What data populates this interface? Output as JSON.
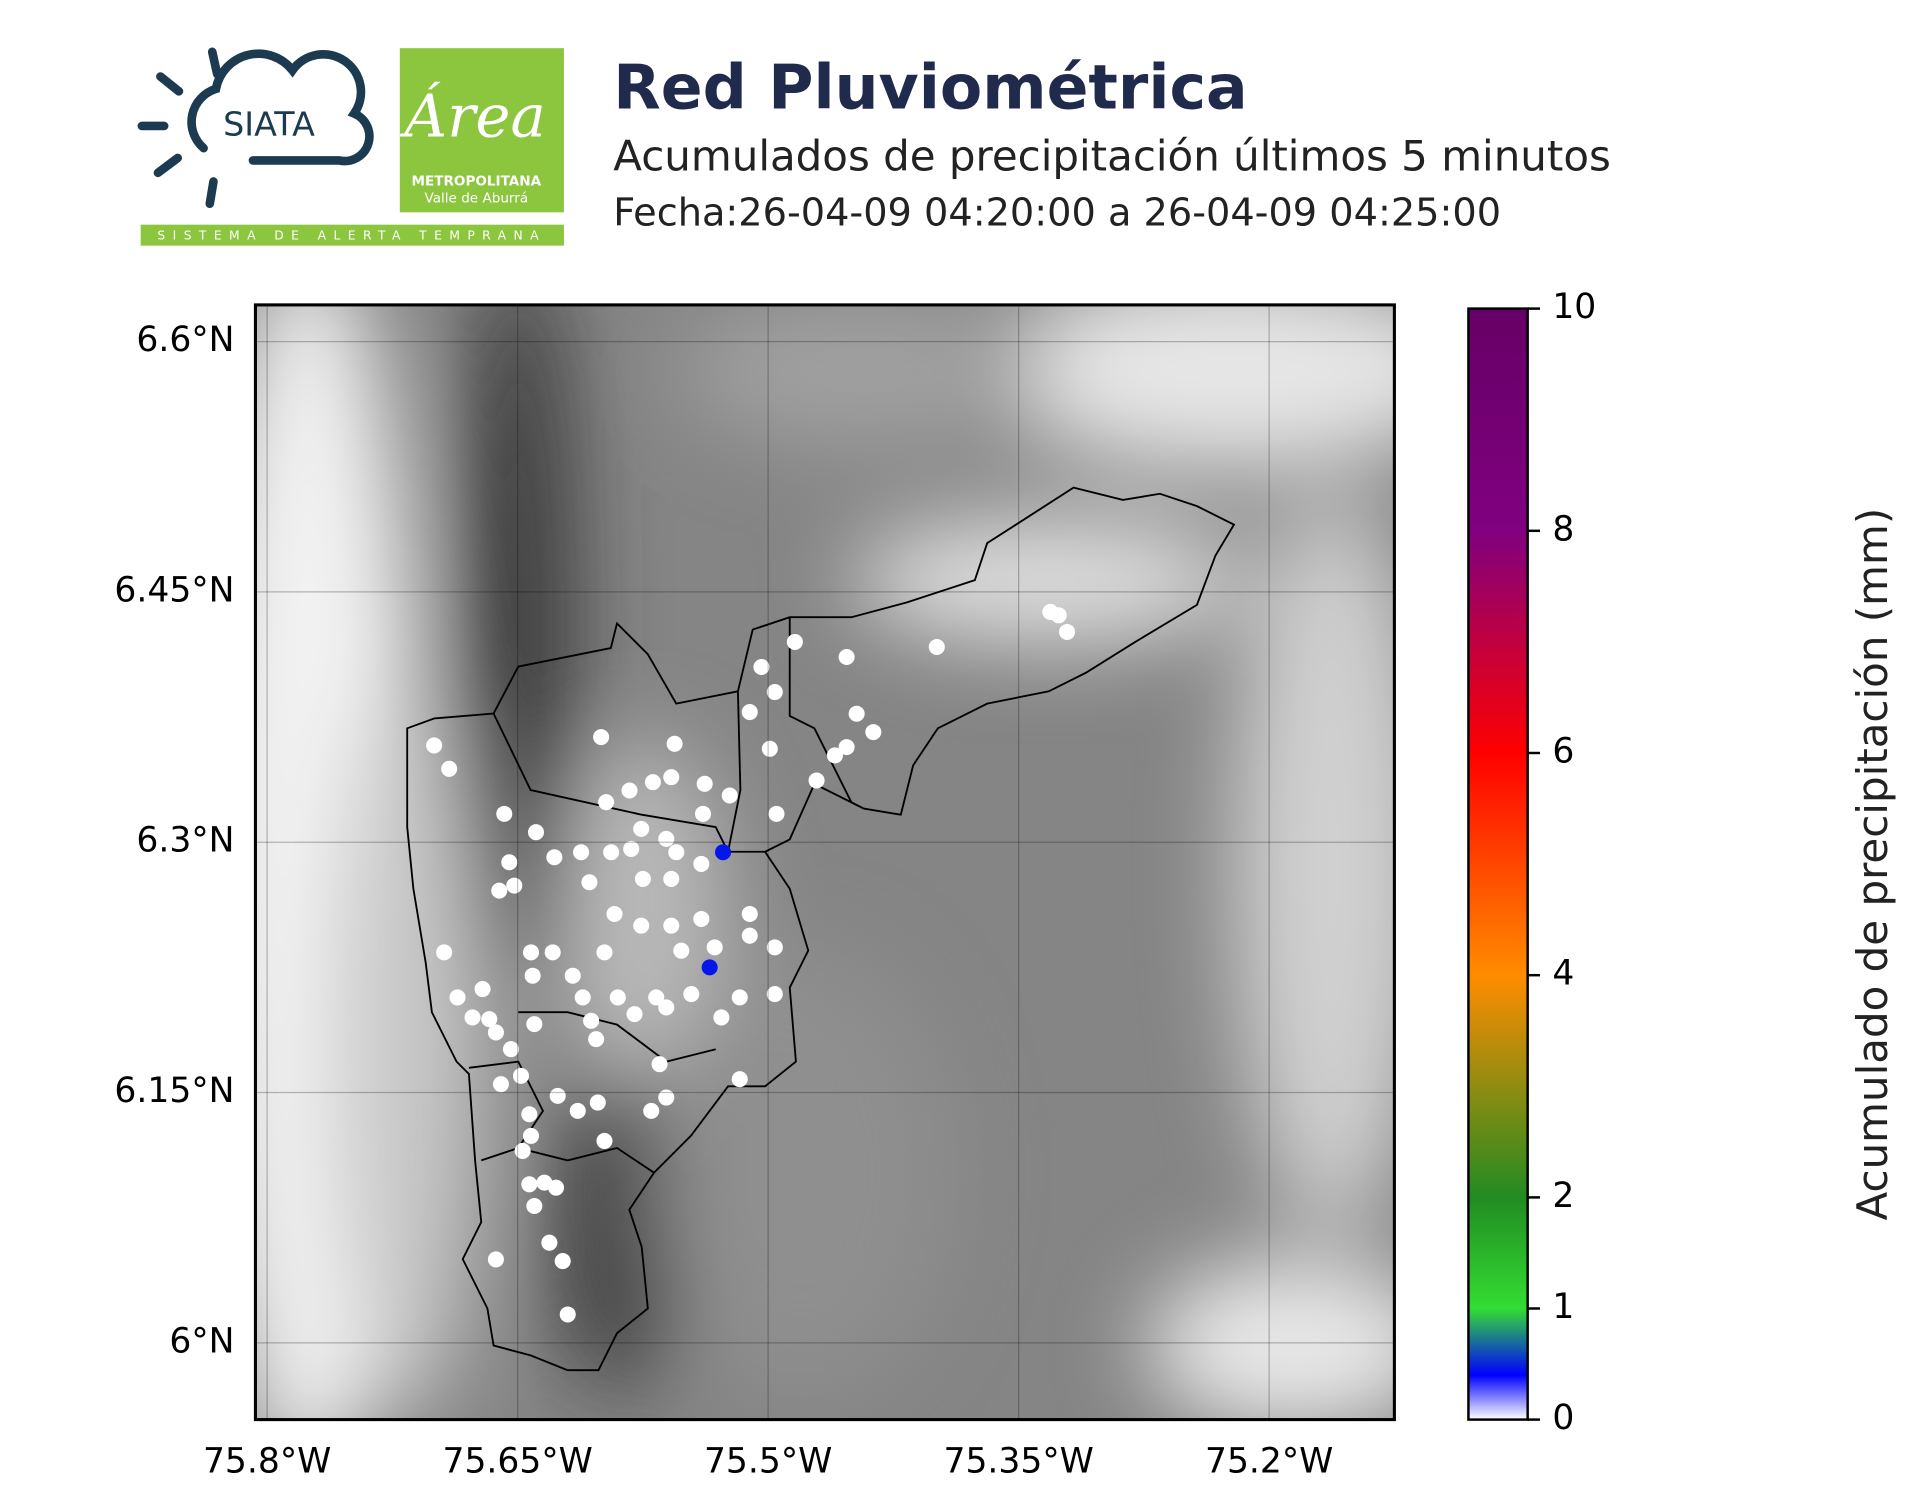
{
  "header": {
    "logo_siata": "SIATA",
    "logo_area": "Área",
    "logo_metro": "METROPOLITANA",
    "logo_valle": "Valle de Aburrá",
    "logo_tagline": "SISTEMA DE ALERTA TEMPRANA",
    "title": "Red Pluviométrica",
    "subtitle": "Acumulados de precipitación últimos 5 minutos",
    "date": "Fecha:26-04-09 04:20:00 a 26-04-09 04:25:00"
  },
  "chart_data": {
    "type": "scatter",
    "xlim": [
      -75.807,
      -75.125
    ],
    "ylim": [
      5.954,
      6.622
    ],
    "xticks": [
      {
        "value": -75.8,
        "label": "75.8°W"
      },
      {
        "value": -75.65,
        "label": "75.65°W"
      },
      {
        "value": -75.5,
        "label": "75.5°W"
      },
      {
        "value": -75.35,
        "label": "75.35°W"
      },
      {
        "value": -75.2,
        "label": "75.2°W"
      }
    ],
    "yticks": [
      {
        "value": 6.6,
        "label": "6.6°N"
      },
      {
        "value": 6.45,
        "label": "6.45°N"
      },
      {
        "value": 6.3,
        "label": "6.3°N"
      },
      {
        "value": 6.15,
        "label": "6.15°N"
      },
      {
        "value": 6.0,
        "label": "6°N"
      }
    ],
    "grid": true,
    "x": [
      -75.7,
      -75.691,
      -75.6,
      -75.556,
      -75.504,
      -75.484,
      -75.453,
      -75.399,
      -75.331,
      -75.326,
      -75.321,
      -75.511,
      -75.496,
      -75.447,
      -75.437,
      -75.453,
      -75.46,
      -75.499,
      -75.471,
      -75.523,
      -75.495,
      -75.538,
      -75.558,
      -75.569,
      -75.583,
      -75.597,
      -75.658,
      -75.639,
      -75.612,
      -75.594,
      -75.582,
      -75.561,
      -75.555,
      -75.54,
      -75.539,
      -75.576,
      -75.655,
      -75.661,
      -75.652,
      -75.628,
      -75.607,
      -75.575,
      -75.558,
      -75.592,
      -75.576,
      -75.558,
      -75.54,
      -75.511,
      -75.496,
      -75.511,
      -75.532,
      -75.552,
      -75.535,
      -75.527,
      -75.694,
      -75.642,
      -75.629,
      -75.641,
      -75.617,
      -75.598,
      -75.611,
      -75.59,
      -75.567,
      -75.546,
      -75.517,
      -75.496,
      -75.686,
      -75.671,
      -75.677,
      -75.667,
      -75.64,
      -75.606,
      -75.58,
      -75.561,
      -75.528,
      -75.663,
      -75.654,
      -75.603,
      -75.565,
      -75.517,
      -75.66,
      -75.648,
      -75.626,
      -75.614,
      -75.602,
      -75.561,
      -75.57,
      -75.643,
      -75.642,
      -75.598,
      -75.647,
      -75.643,
      -75.634,
      -75.627,
      -75.64,
      -75.631,
      -75.623,
      -75.663,
      -75.62
    ],
    "y": [
      6.358,
      6.344,
      6.363,
      6.359,
      6.405,
      6.42,
      6.411,
      6.417,
      6.438,
      6.436,
      6.426,
      6.378,
      6.39,
      6.377,
      6.366,
      6.357,
      6.352,
      6.356,
      6.337,
      6.328,
      6.317,
      6.335,
      6.339,
      6.336,
      6.331,
      6.324,
      6.317,
      6.306,
      6.294,
      6.294,
      6.296,
      6.302,
      6.294,
      6.287,
      6.317,
      6.308,
      6.288,
      6.271,
      6.274,
      6.291,
      6.276,
      6.278,
      6.278,
      6.257,
      6.25,
      6.25,
      6.254,
      6.257,
      6.237,
      6.244,
      6.237,
      6.235,
      6.225,
      6.294,
      6.234,
      6.234,
      6.234,
      6.22,
      6.22,
      6.234,
      6.207,
      6.207,
      6.207,
      6.209,
      6.207,
      6.209,
      6.207,
      6.212,
      6.195,
      6.194,
      6.191,
      6.193,
      6.197,
      6.201,
      6.195,
      6.186,
      6.176,
      6.182,
      6.167,
      6.158,
      6.155,
      6.16,
      6.148,
      6.139,
      6.144,
      6.147,
      6.139,
      6.137,
      6.124,
      6.121,
      6.115,
      6.095,
      6.096,
      6.093,
      6.082,
      6.06,
      6.049,
      6.05,
      6.017
    ],
    "values": [
      0,
      0,
      0,
      0,
      0,
      0,
      0,
      0,
      0,
      0,
      0,
      0,
      0,
      0,
      0,
      0,
      0,
      0,
      0,
      0,
      0,
      0,
      0,
      0,
      0,
      0,
      0,
      0,
      0,
      0,
      0,
      0,
      0,
      0,
      0,
      0,
      0,
      0,
      0,
      0,
      0,
      0,
      0,
      0,
      0,
      0,
      0,
      0,
      0,
      0,
      0,
      0,
      0.5,
      0.5,
      0,
      0,
      0,
      0,
      0,
      0,
      0,
      0,
      0,
      0,
      0,
      0,
      0,
      0,
      0,
      0,
      0,
      0,
      0,
      0,
      0,
      0,
      0,
      0,
      0,
      0,
      0,
      0,
      0,
      0,
      0,
      0,
      0,
      0,
      0,
      0,
      0,
      0,
      0,
      0,
      0,
      0,
      0,
      0,
      0
    ],
    "colorbar": {
      "label": "Acumulado de precipitación (mm)",
      "lim": [
        0,
        10
      ],
      "ticks": [
        0,
        1,
        2,
        4,
        6,
        8,
        10
      ],
      "colormap": [
        "#ffffff",
        "#0000ff",
        "#33dd33",
        "#228b22",
        "#ff8c00",
        "#ff0000",
        "#800080",
        "#660066"
      ]
    }
  }
}
